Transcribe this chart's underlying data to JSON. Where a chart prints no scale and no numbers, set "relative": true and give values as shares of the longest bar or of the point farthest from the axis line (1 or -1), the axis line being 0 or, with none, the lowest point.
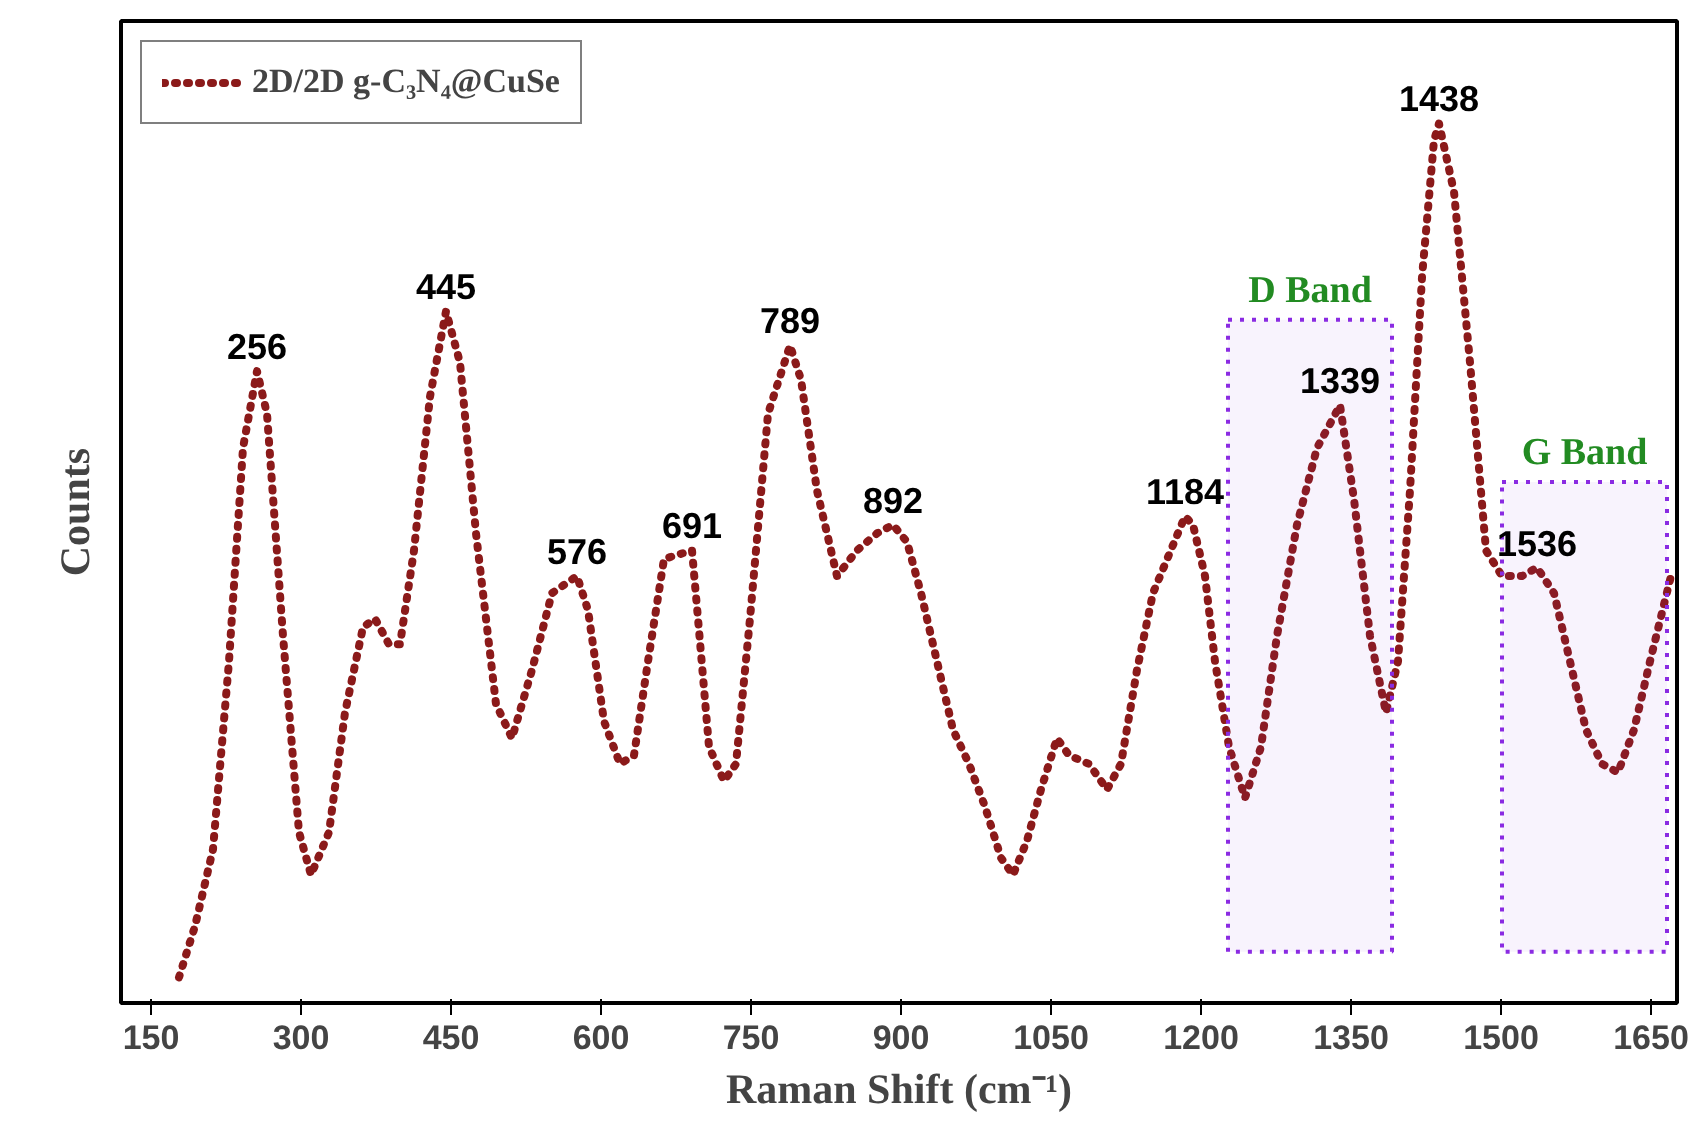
{
  "chart_data": {
    "type": "line",
    "relative": true,
    "xlabel": "Raman Shift (cm⁻¹)",
    "ylabel": "Counts",
    "xlim": [
      120,
      1676
    ],
    "xticks": [
      150,
      300,
      450,
      600,
      750,
      900,
      1050,
      1200,
      1350,
      1500,
      1650
    ],
    "legend": "top left",
    "line_style": "dotted",
    "grid": false,
    "x": [
      178,
      194,
      212,
      228,
      242,
      256,
      266,
      282,
      298,
      310,
      328,
      344,
      362,
      374,
      388,
      399,
      413,
      429,
      445,
      459,
      475,
      495,
      511,
      531,
      551,
      576,
      587,
      603,
      619,
      633,
      647,
      663,
      691,
      697,
      708,
      723,
      735,
      749,
      767,
      789,
      800,
      816,
      836,
      856,
      876,
      892,
      906,
      920,
      936,
      952,
      968,
      984,
      1000,
      1012,
      1026,
      1040,
      1056,
      1068,
      1088,
      1106,
      1120,
      1136,
      1152,
      1184,
      1192,
      1204,
      1214,
      1228,
      1244,
      1260,
      1276,
      1296,
      1316,
      1339,
      1353,
      1369,
      1385,
      1397,
      1409,
      1421,
      1433,
      1438,
      1453,
      1469,
      1485,
      1501,
      1521,
      1536,
      1553,
      1569,
      1585,
      1601,
      1617,
      1633,
      1649,
      1670
    ],
    "series": [
      {
        "name": "2D/2D g-C₃N₄@CuSe",
        "color": "#8b1a1a",
        "values": [
          0,
          0.06,
          0.15,
          0.37,
          0.62,
          0.71,
          0.66,
          0.4,
          0.17,
          0.12,
          0.17,
          0.31,
          0.41,
          0.42,
          0.39,
          0.39,
          0.5,
          0.68,
          0.78,
          0.72,
          0.52,
          0.32,
          0.28,
          0.36,
          0.45,
          0.47,
          0.43,
          0.3,
          0.25,
          0.26,
          0.37,
          0.49,
          0.5,
          0.42,
          0.27,
          0.23,
          0.25,
          0.42,
          0.66,
          0.74,
          0.7,
          0.57,
          0.47,
          0.5,
          0.52,
          0.53,
          0.51,
          0.45,
          0.37,
          0.29,
          0.25,
          0.2,
          0.14,
          0.12,
          0.16,
          0.22,
          0.28,
          0.26,
          0.25,
          0.22,
          0.25,
          0.36,
          0.45,
          0.54,
          0.53,
          0.47,
          0.37,
          0.27,
          0.21,
          0.27,
          0.4,
          0.53,
          0.62,
          0.67,
          0.56,
          0.4,
          0.31,
          0.37,
          0.57,
          0.82,
          0.98,
          1.0,
          0.92,
          0.72,
          0.5,
          0.47,
          0.47,
          0.48,
          0.45,
          0.37,
          0.29,
          0.25,
          0.24,
          0.29,
          0.37,
          0.47
        ]
      }
    ],
    "bands": [
      {
        "axis": "x",
        "from": 1227,
        "to": 1391,
        "label": "D Band",
        "color": "#8a2be2"
      },
      {
        "axis": "x",
        "from": 1501,
        "to": 1666,
        "label": "G Band",
        "color": "#8a2be2"
      }
    ],
    "annotations": [
      {
        "text": "256",
        "x": 256,
        "y": 0.71
      },
      {
        "text": "445",
        "x": 445,
        "y": 0.78
      },
      {
        "text": "576",
        "x": 576,
        "y": 0.47
      },
      {
        "text": "691",
        "x": 691,
        "y": 0.5
      },
      {
        "text": "789",
        "x": 789,
        "y": 0.74
      },
      {
        "text": "892",
        "x": 892,
        "y": 0.53
      },
      {
        "text": "1184",
        "x": 1184,
        "y": 0.54
      },
      {
        "text": "1339",
        "x": 1339,
        "y": 0.67
      },
      {
        "text": "1438",
        "x": 1438,
        "y": 1.0
      },
      {
        "text": "1536",
        "x": 1536,
        "y": 0.48
      }
    ]
  }
}
